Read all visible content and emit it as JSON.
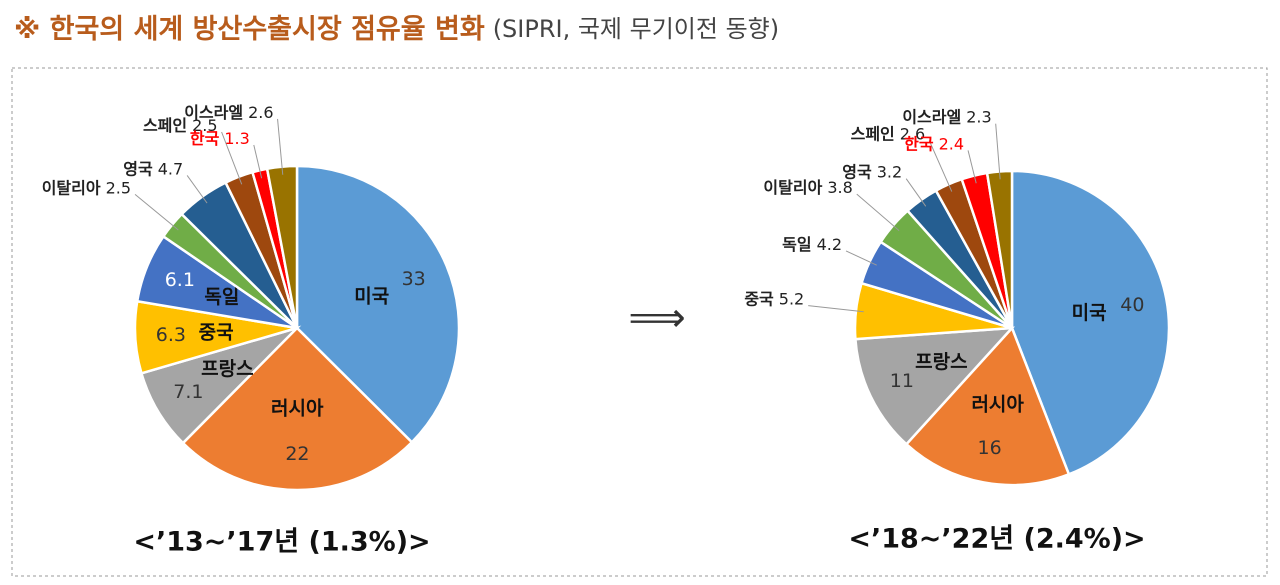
{
  "title": "※ 한국의 세계 방산수출시장 점유율 변화",
  "subtitle": "(SIPRI, 국제 무기이전 동향)",
  "chart_data": [
    {
      "type": "pie",
      "title": "<’13~’17년 (1.3%)>",
      "categories": [
        "미국",
        "러시아",
        "프랑스",
        "중국",
        "독일",
        "이탈리아",
        "영국",
        "스페인",
        "한국",
        "이스라엘"
      ],
      "values": [
        33,
        22,
        7.1,
        6.3,
        6.1,
        2.5,
        4.7,
        2.5,
        1.3,
        2.6
      ],
      "colors": [
        "#5b9bd5",
        "#ed7d31",
        "#a5a5a5",
        "#ffc000",
        "#4472c4",
        "#70ad47",
        "#255e91",
        "#9e480e",
        "#ff0000",
        "#997300"
      ],
      "highlight_index": 8
    },
    {
      "type": "pie",
      "title": "<’18~’22년 (2.4%)>",
      "categories": [
        "미국",
        "러시아",
        "프랑스",
        "중국",
        "독일",
        "이탈리아",
        "영국",
        "스페인",
        "한국",
        "이스라엘"
      ],
      "values": [
        40,
        16,
        11,
        5.2,
        4.2,
        3.8,
        3.2,
        2.6,
        2.4,
        2.3
      ],
      "colors": [
        "#5b9bd5",
        "#ed7d31",
        "#a5a5a5",
        "#ffc000",
        "#4472c4",
        "#70ad47",
        "#255e91",
        "#9e480e",
        "#ff0000",
        "#997300"
      ],
      "highlight_index": 8
    }
  ]
}
